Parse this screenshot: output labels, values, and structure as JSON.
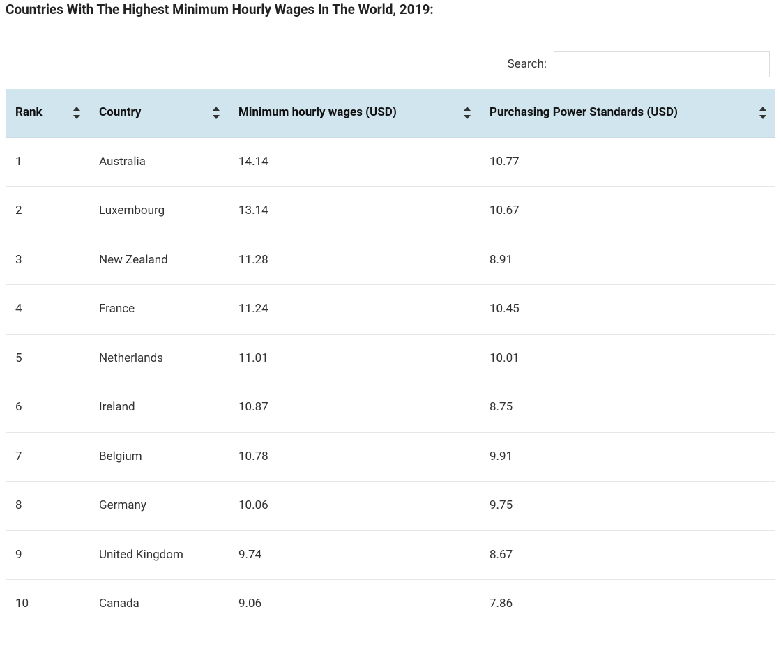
{
  "title": "Countries With The Highest Minimum Hourly Wages In The World, 2019:",
  "search": {
    "label": "Search:",
    "value": ""
  },
  "table": {
    "columns": [
      {
        "key": "rank",
        "label": "Rank"
      },
      {
        "key": "country",
        "label": "Country"
      },
      {
        "key": "wage",
        "label": "Minimum hourly wages (USD)"
      },
      {
        "key": "pps",
        "label": "Purchasing Power Standards (USD)"
      }
    ],
    "rows": [
      {
        "rank": "1",
        "country": "Australia",
        "wage": "14.14",
        "pps": "10.77"
      },
      {
        "rank": "2",
        "country": "Luxembourg",
        "wage": "13.14",
        "pps": "10.67"
      },
      {
        "rank": "3",
        "country": "New Zealand",
        "wage": "11.28",
        "pps": "8.91"
      },
      {
        "rank": "4",
        "country": "France",
        "wage": "11.24",
        "pps": "10.45"
      },
      {
        "rank": "5",
        "country": "Netherlands",
        "wage": "11.01",
        "pps": "10.01"
      },
      {
        "rank": "6",
        "country": "Ireland",
        "wage": "10.87",
        "pps": "8.75"
      },
      {
        "rank": "7",
        "country": "Belgium",
        "wage": "10.78",
        "pps": "9.91"
      },
      {
        "rank": "8",
        "country": "Germany",
        "wage": "10.06",
        "pps": "9.75"
      },
      {
        "rank": "9",
        "country": "United Kingdom",
        "wage": "9.74",
        "pps": "8.67"
      },
      {
        "rank": "10",
        "country": "Canada",
        "wage": "9.06",
        "pps": "7.86"
      }
    ]
  },
  "style": {
    "header_bg": "#d1e5ef",
    "row_border": "#e6e6e6",
    "text_color": "#333333",
    "title_color": "#222222",
    "font_size_title": 19,
    "font_size_header": 17,
    "font_size_cell": 17
  }
}
